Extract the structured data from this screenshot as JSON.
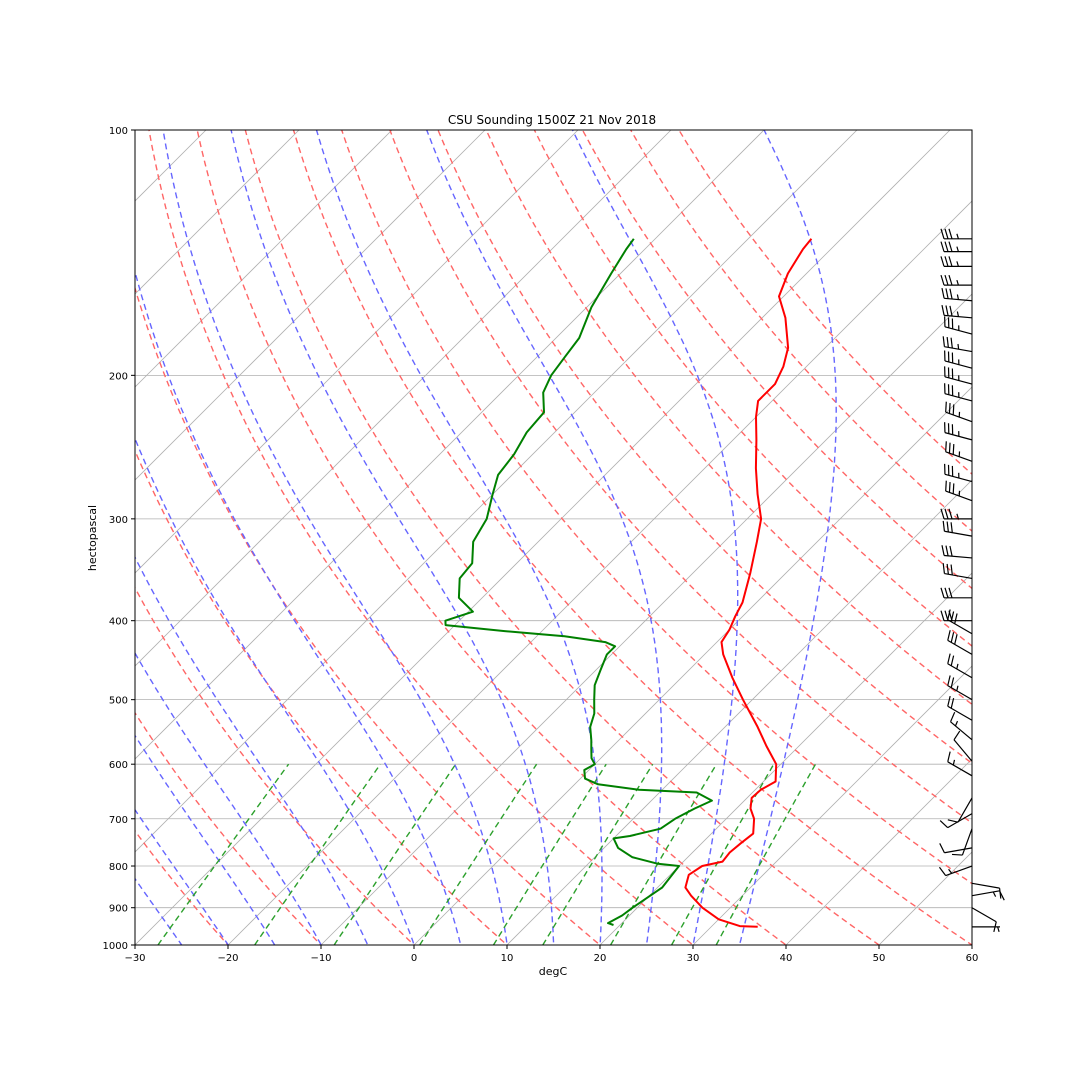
{
  "chart_data": {
    "type": "line",
    "title": "CSU Sounding 1500Z 21 Nov 2018",
    "xlabel": "degC",
    "ylabel": "hectopascal",
    "xlim": [
      -30,
      60
    ],
    "ylim": [
      1000,
      100
    ],
    "y_scale": "log",
    "skew_t": true,
    "x_ticks": [
      "−30",
      "−20",
      "−10",
      "0",
      "10",
      "20",
      "30",
      "40",
      "50",
      "60"
    ],
    "x_tick_values": [
      -30,
      -20,
      -10,
      0,
      10,
      20,
      30,
      40,
      50,
      60
    ],
    "y_ticks": [
      "100",
      "200",
      "300",
      "400",
      "500",
      "600",
      "700",
      "800",
      "900",
      "1000"
    ],
    "y_tick_values": [
      100,
      200,
      300,
      400,
      500,
      600,
      700,
      800,
      900,
      1000
    ],
    "grid": true,
    "colors": {
      "temperature": "#ff0000",
      "dewpoint": "#008000",
      "dry_adiabats": "#ff6666",
      "moist_adiabats": "#6666ff",
      "mixing_ratio": "#2ca02c",
      "isotherms": "#999999",
      "barbs": "#000000"
    },
    "series": [
      {
        "key": "temperature",
        "points": [
          {
            "p": 950,
            "t": 35.0
          },
          {
            "p": 948,
            "t": 33.0
          },
          {
            "p": 930,
            "t": 30.0
          },
          {
            "p": 900,
            "t": 27.0
          },
          {
            "p": 870,
            "t": 24.5
          },
          {
            "p": 850,
            "t": 23.0
          },
          {
            "p": 820,
            "t": 22.0
          },
          {
            "p": 800,
            "t": 22.5
          },
          {
            "p": 790,
            "t": 24.2
          },
          {
            "p": 770,
            "t": 24.0
          },
          {
            "p": 750,
            "t": 24.2
          },
          {
            "p": 730,
            "t": 24.5
          },
          {
            "p": 700,
            "t": 23.0
          },
          {
            "p": 680,
            "t": 21.5
          },
          {
            "p": 660,
            "t": 20.5
          },
          {
            "p": 645,
            "t": 20.6
          },
          {
            "p": 630,
            "t": 21.3
          },
          {
            "p": 600,
            "t": 19.5
          },
          {
            "p": 570,
            "t": 16.5
          },
          {
            "p": 540,
            "t": 13.5
          },
          {
            "p": 500,
            "t": 9.0
          },
          {
            "p": 470,
            "t": 5.5
          },
          {
            "p": 440,
            "t": 2.0
          },
          {
            "p": 425,
            "t": 0.5
          },
          {
            "p": 410,
            "t": 0.0
          },
          {
            "p": 395,
            "t": -0.8
          },
          {
            "p": 380,
            "t": -1.5
          },
          {
            "p": 350,
            "t": -3.8
          },
          {
            "p": 320,
            "t": -6.5
          },
          {
            "p": 300,
            "t": -8.5
          },
          {
            "p": 280,
            "t": -11.5
          },
          {
            "p": 260,
            "t": -14.5
          },
          {
            "p": 240,
            "t": -17.5
          },
          {
            "p": 225,
            "t": -20.0
          },
          {
            "p": 215,
            "t": -21.5
          },
          {
            "p": 205,
            "t": -21.5
          },
          {
            "p": 195,
            "t": -22.5
          },
          {
            "p": 185,
            "t": -24.0
          },
          {
            "p": 170,
            "t": -27.5
          },
          {
            "p": 160,
            "t": -30.5
          },
          {
            "p": 150,
            "t": -32.0
          },
          {
            "p": 140,
            "t": -33.0
          },
          {
            "p": 136,
            "t": -33.2
          }
        ]
      },
      {
        "key": "dewpoint",
        "points": [
          {
            "p": 945,
            "t": 19.3
          },
          {
            "p": 940,
            "t": 18.5
          },
          {
            "p": 920,
            "t": 19.2
          },
          {
            "p": 900,
            "t": 19.5
          },
          {
            "p": 850,
            "t": 20.5
          },
          {
            "p": 800,
            "t": 20.0
          },
          {
            "p": 795,
            "t": 17.5
          },
          {
            "p": 780,
            "t": 14.0
          },
          {
            "p": 760,
            "t": 11.5
          },
          {
            "p": 740,
            "t": 10.0
          },
          {
            "p": 735,
            "t": 11.5
          },
          {
            "p": 720,
            "t": 14.0
          },
          {
            "p": 700,
            "t": 14.5
          },
          {
            "p": 680,
            "t": 15.5
          },
          {
            "p": 665,
            "t": 16.5
          },
          {
            "p": 650,
            "t": 14.0
          },
          {
            "p": 645,
            "t": 7.5
          },
          {
            "p": 635,
            "t": 2.5
          },
          {
            "p": 625,
            "t": 0.5
          },
          {
            "p": 610,
            "t": -0.5
          },
          {
            "p": 600,
            "t": 0.0
          },
          {
            "p": 590,
            "t": -1.0
          },
          {
            "p": 575,
            "t": -2.0
          },
          {
            "p": 560,
            "t": -3.0
          },
          {
            "p": 540,
            "t": -4.5
          },
          {
            "p": 520,
            "t": -5.5
          },
          {
            "p": 500,
            "t": -7.0
          },
          {
            "p": 480,
            "t": -8.5
          },
          {
            "p": 460,
            "t": -9.5
          },
          {
            "p": 440,
            "t": -10.5
          },
          {
            "p": 430,
            "t": -10.5
          },
          {
            "p": 425,
            "t": -12.0
          },
          {
            "p": 418,
            "t": -17.0
          },
          {
            "p": 412,
            "t": -24.0
          },
          {
            "p": 405,
            "t": -31.0
          },
          {
            "p": 400,
            "t": -31.5
          },
          {
            "p": 390,
            "t": -29.5
          },
          {
            "p": 375,
            "t": -32.5
          },
          {
            "p": 355,
            "t": -34.5
          },
          {
            "p": 340,
            "t": -34.8
          },
          {
            "p": 320,
            "t": -37.0
          },
          {
            "p": 300,
            "t": -38.0
          },
          {
            "p": 280,
            "t": -40.0
          },
          {
            "p": 265,
            "t": -41.5
          },
          {
            "p": 250,
            "t": -42.0
          },
          {
            "p": 235,
            "t": -43.0
          },
          {
            "p": 222,
            "t": -43.3
          },
          {
            "p": 210,
            "t": -45.5
          },
          {
            "p": 200,
            "t": -46.5
          },
          {
            "p": 190,
            "t": -47.0
          },
          {
            "p": 180,
            "t": -47.5
          },
          {
            "p": 165,
            "t": -49.5
          },
          {
            "p": 150,
            "t": -51.0
          },
          {
            "p": 140,
            "t": -52.0
          },
          {
            "p": 136,
            "t": -52.3
          }
        ]
      }
    ],
    "dry_adiabats_theta_c": [
      -30,
      -20,
      -10,
      0,
      10,
      20,
      30,
      40,
      50,
      60,
      70,
      80,
      90,
      100,
      110,
      120,
      130,
      140
    ],
    "moist_adiabats_t0_c": [
      -30,
      -25,
      -20,
      -15,
      -10,
      -5,
      0,
      5,
      10,
      15,
      20,
      25,
      30,
      35
    ],
    "mixing_ratio_g_per_kg": [
      0.4,
      1,
      2,
      4,
      7,
      10,
      16,
      24,
      32
    ],
    "wind_barbs": [
      {
        "p": 950,
        "speed_kt": 5,
        "dir_deg": 90
      },
      {
        "p": 900,
        "speed_kt": 10,
        "dir_deg": 120
      },
      {
        "p": 870,
        "speed_kt": 15,
        "dir_deg": 80
      },
      {
        "p": 840,
        "speed_kt": 10,
        "dir_deg": 100
      },
      {
        "p": 800,
        "speed_kt": 15,
        "dir_deg": 250
      },
      {
        "p": 760,
        "speed_kt": 10,
        "dir_deg": 260
      },
      {
        "p": 720,
        "speed_kt": 10,
        "dir_deg": 200
      },
      {
        "p": 690,
        "speed_kt": 10,
        "dir_deg": 240
      },
      {
        "p": 660,
        "speed_kt": 10,
        "dir_deg": 210
      },
      {
        "p": 620,
        "speed_kt": 15,
        "dir_deg": 300
      },
      {
        "p": 595,
        "speed_kt": 10,
        "dir_deg": 320
      },
      {
        "p": 560,
        "speed_kt": 15,
        "dir_deg": 310
      },
      {
        "p": 530,
        "speed_kt": 20,
        "dir_deg": 300
      },
      {
        "p": 500,
        "speed_kt": 25,
        "dir_deg": 300
      },
      {
        "p": 470,
        "speed_kt": 25,
        "dir_deg": 300
      },
      {
        "p": 440,
        "speed_kt": 30,
        "dir_deg": 300
      },
      {
        "p": 415,
        "speed_kt": 30,
        "dir_deg": 300
      },
      {
        "p": 400,
        "speed_kt": 30,
        "dir_deg": 270
      },
      {
        "p": 375,
        "speed_kt": 30,
        "dir_deg": 270
      },
      {
        "p": 355,
        "speed_kt": 30,
        "dir_deg": 280
      },
      {
        "p": 335,
        "speed_kt": 30,
        "dir_deg": 275
      },
      {
        "p": 315,
        "speed_kt": 30,
        "dir_deg": 280
      },
      {
        "p": 300,
        "speed_kt": 35,
        "dir_deg": 270
      },
      {
        "p": 285,
        "speed_kt": 35,
        "dir_deg": 290
      },
      {
        "p": 270,
        "speed_kt": 35,
        "dir_deg": 285
      },
      {
        "p": 255,
        "speed_kt": 35,
        "dir_deg": 290
      },
      {
        "p": 240,
        "speed_kt": 35,
        "dir_deg": 285
      },
      {
        "p": 228,
        "speed_kt": 35,
        "dir_deg": 290
      },
      {
        "p": 215,
        "speed_kt": 35,
        "dir_deg": 285
      },
      {
        "p": 205,
        "speed_kt": 35,
        "dir_deg": 285
      },
      {
        "p": 196,
        "speed_kt": 35,
        "dir_deg": 285
      },
      {
        "p": 187,
        "speed_kt": 35,
        "dir_deg": 280
      },
      {
        "p": 178,
        "speed_kt": 35,
        "dir_deg": 285
      },
      {
        "p": 170,
        "speed_kt": 35,
        "dir_deg": 275
      },
      {
        "p": 162,
        "speed_kt": 35,
        "dir_deg": 275
      },
      {
        "p": 155,
        "speed_kt": 35,
        "dir_deg": 270
      },
      {
        "p": 147,
        "speed_kt": 35,
        "dir_deg": 270
      },
      {
        "p": 141,
        "speed_kt": 35,
        "dir_deg": 270
      },
      {
        "p": 136,
        "speed_kt": 35,
        "dir_deg": 270
      }
    ]
  }
}
